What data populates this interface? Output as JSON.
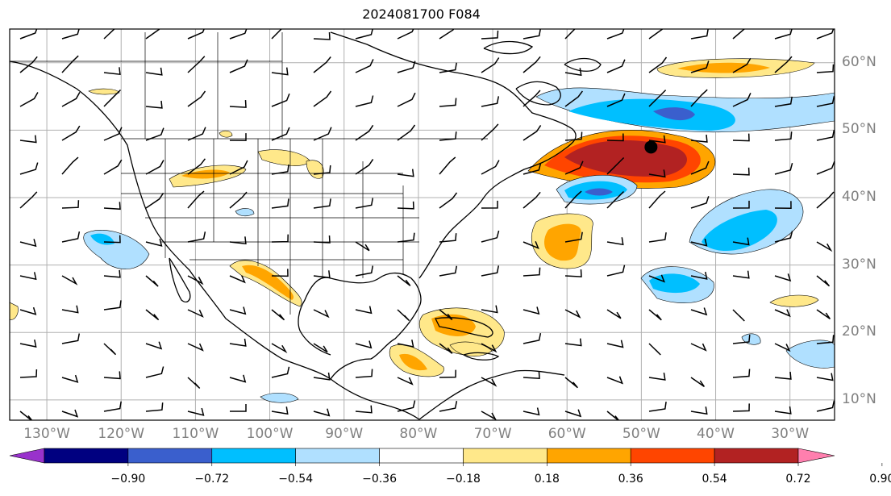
{
  "title": "2024081700 F084",
  "lon_labels": [
    "130°W",
    "120°W",
    "110°W",
    "100°W",
    "90°W",
    "80°W",
    "70°W",
    "60°W",
    "50°W",
    "40°W",
    "30°W"
  ],
  "lat_labels": [
    "60°N",
    "50°N",
    "40°N",
    "30°N",
    "20°N",
    "10°N"
  ],
  "colorbar": {
    "ticks": [
      "−0.90",
      "−0.72",
      "−0.54",
      "−0.36",
      "−0.18",
      "0.18",
      "0.36",
      "0.54",
      "0.72",
      "0.90"
    ],
    "colors": [
      "#9932cc",
      "#000080",
      "#3a5fcd",
      "#00bfff",
      "#b0e0ff",
      "#ffffff",
      "#ffe88a",
      "#ffa500",
      "#ff4500",
      "#b22222",
      "#ff7fae"
    ]
  },
  "map": {
    "extent_lon": [
      -135,
      -24
    ],
    "extent_lat": [
      7,
      65
    ],
    "station_marker": {
      "lon": -48.7,
      "lat": 47.5,
      "color": "#000000"
    }
  }
}
